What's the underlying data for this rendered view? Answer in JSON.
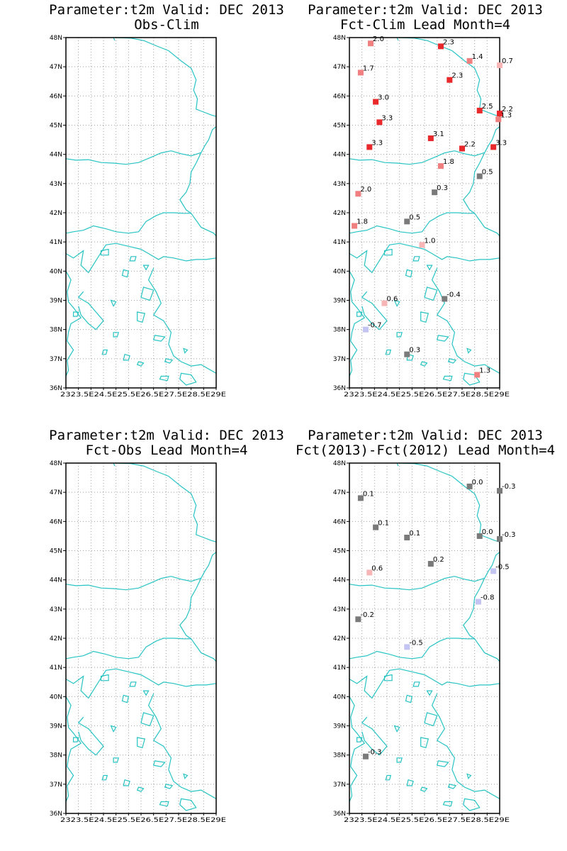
{
  "colors": {
    "coast": "#28c3c3",
    "grid": "#a0a0a0",
    "frame": "#000000",
    "red": "#e8282b",
    "pink": "#f08080",
    "lightpink": "#f7b5b5",
    "gray": "#7a7a7a",
    "lavender": "#c4c4f2"
  },
  "axes": {
    "lon_ticks": [
      "23E",
      "23.5E",
      "24E",
      "24.5E",
      "25E",
      "25.5E",
      "26E",
      "26.5E",
      "27E",
      "27.5E",
      "28E",
      "28.5E",
      "29E"
    ],
    "lon_label_strip": "2323.5E24.5E25.5E26.5E27.5E28.5E29E",
    "lat_ticks": [
      "36N",
      "37N",
      "38N",
      "39N",
      "40N",
      "41N",
      "42N",
      "43N",
      "44N",
      "45N",
      "46N",
      "47N",
      "48N"
    ],
    "lon_range": [
      23,
      29
    ],
    "lat_range": [
      36,
      48
    ]
  },
  "panels": [
    {
      "id": "obs-clim",
      "title1": "Parameter:t2m Valid: DEC 2013",
      "title2": "Obs-Clim",
      "stations": []
    },
    {
      "id": "fct-clim",
      "title1": "Parameter:t2m Valid: DEC 2013",
      "title2": "Fct-Clim Lead Month=4",
      "stations": [
        {
          "lon": 23.85,
          "lat": 47.8,
          "label": "2.0",
          "color": "pink"
        },
        {
          "lon": 26.65,
          "lat": 47.7,
          "label": "2.3",
          "color": "red"
        },
        {
          "lon": 27.8,
          "lat": 47.2,
          "label": "1.4",
          "color": "pink"
        },
        {
          "lon": 29.0,
          "lat": 47.05,
          "label": "0.7",
          "color": "lightpink"
        },
        {
          "lon": 23.45,
          "lat": 46.8,
          "label": "1.7",
          "color": "pink"
        },
        {
          "lon": 27.0,
          "lat": 46.55,
          "label": "2.3",
          "color": "red"
        },
        {
          "lon": 24.05,
          "lat": 45.8,
          "label": "3.0",
          "color": "red"
        },
        {
          "lon": 28.2,
          "lat": 45.5,
          "label": "2.5",
          "color": "red"
        },
        {
          "lon": 29.0,
          "lat": 45.4,
          "label": "2.2",
          "color": "red"
        },
        {
          "lon": 28.95,
          "lat": 45.2,
          "label": "1.3",
          "color": "pink"
        },
        {
          "lon": 24.2,
          "lat": 45.1,
          "label": "3.3",
          "color": "red"
        },
        {
          "lon": 26.25,
          "lat": 44.55,
          "label": "3.1",
          "color": "red"
        },
        {
          "lon": 23.8,
          "lat": 44.25,
          "label": "3.3",
          "color": "red"
        },
        {
          "lon": 27.5,
          "lat": 44.2,
          "label": "2.2",
          "color": "red"
        },
        {
          "lon": 28.75,
          "lat": 44.25,
          "label": "3.3",
          "color": "red"
        },
        {
          "lon": 26.65,
          "lat": 43.6,
          "label": "1.8",
          "color": "pink"
        },
        {
          "lon": 28.2,
          "lat": 43.25,
          "label": "0.5",
          "color": "gray"
        },
        {
          "lon": 26.4,
          "lat": 42.7,
          "label": "0.3",
          "color": "gray"
        },
        {
          "lon": 23.35,
          "lat": 42.65,
          "label": "2.0",
          "color": "pink"
        },
        {
          "lon": 25.3,
          "lat": 41.7,
          "label": "0.5",
          "color": "gray"
        },
        {
          "lon": 23.2,
          "lat": 41.55,
          "label": "1.8",
          "color": "pink"
        },
        {
          "lon": 25.9,
          "lat": 40.9,
          "label": "1.0",
          "color": "lightpink"
        },
        {
          "lon": 24.4,
          "lat": 38.9,
          "label": "0.6",
          "color": "lightpink"
        },
        {
          "lon": 26.8,
          "lat": 39.05,
          "label": "-0.4",
          "color": "gray"
        },
        {
          "lon": 23.65,
          "lat": 38.0,
          "label": "-0.7",
          "color": "lavender"
        },
        {
          "lon": 25.3,
          "lat": 37.15,
          "label": "0.3",
          "color": "gray"
        },
        {
          "lon": 28.1,
          "lat": 36.45,
          "label": "1.3",
          "color": "pink"
        }
      ]
    },
    {
      "id": "fct-obs",
      "title1": "Parameter:t2m Valid: DEC 2013",
      "title2": "Fct-Obs Lead Month=4",
      "stations": []
    },
    {
      "id": "fct-diff",
      "title1": "Parameter:t2m Valid: DEC 2013",
      "title2": "Fct(2013)-Fct(2012) Lead Month=4",
      "stations": [
        {
          "lon": 27.8,
          "lat": 47.2,
          "label": "0.0",
          "color": "gray"
        },
        {
          "lon": 29.0,
          "lat": 47.05,
          "label": "-0.3",
          "color": "gray"
        },
        {
          "lon": 23.45,
          "lat": 46.8,
          "label": "0.1",
          "color": "gray"
        },
        {
          "lon": 24.05,
          "lat": 45.8,
          "label": "0.1",
          "color": "gray"
        },
        {
          "lon": 25.3,
          "lat": 45.45,
          "label": "0.1",
          "color": "gray"
        },
        {
          "lon": 28.2,
          "lat": 45.5,
          "label": "0.0",
          "color": "gray"
        },
        {
          "lon": 29.0,
          "lat": 45.4,
          "label": "-0.3",
          "color": "gray"
        },
        {
          "lon": 26.25,
          "lat": 44.55,
          "label": "0.2",
          "color": "gray"
        },
        {
          "lon": 23.8,
          "lat": 44.25,
          "label": "0.6",
          "color": "lightpink"
        },
        {
          "lon": 28.75,
          "lat": 44.3,
          "label": "-0.5",
          "color": "lavender"
        },
        {
          "lon": 28.15,
          "lat": 43.25,
          "label": "-0.8",
          "color": "lavender"
        },
        {
          "lon": 23.35,
          "lat": 42.65,
          "label": "-0.2",
          "color": "gray"
        },
        {
          "lon": 25.3,
          "lat": 41.7,
          "label": "-0.5",
          "color": "lavender"
        },
        {
          "lon": 23.65,
          "lat": 37.95,
          "label": "-0.3",
          "color": "gray"
        }
      ]
    }
  ]
}
